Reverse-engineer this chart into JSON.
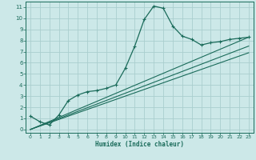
{
  "xlabel": "Humidex (Indice chaleur)",
  "ylabel": "",
  "background_color": "#cce8e8",
  "grid_color": "#aacece",
  "line_color": "#1a6b5a",
  "xlim": [
    -0.5,
    23.5
  ],
  "ylim": [
    -0.3,
    11.5
  ],
  "xticks": [
    0,
    1,
    2,
    3,
    4,
    5,
    6,
    7,
    8,
    9,
    10,
    11,
    12,
    13,
    14,
    15,
    16,
    17,
    18,
    19,
    20,
    21,
    22,
    23
  ],
  "yticks": [
    0,
    1,
    2,
    3,
    4,
    5,
    6,
    7,
    8,
    9,
    10,
    11
  ],
  "main_x": [
    0,
    1,
    2,
    3,
    4,
    5,
    6,
    7,
    8,
    9,
    10,
    11,
    12,
    13,
    14,
    15,
    16,
    17,
    18,
    19,
    20,
    21,
    22,
    23
  ],
  "main_y": [
    1.2,
    0.7,
    0.4,
    1.3,
    2.6,
    3.1,
    3.4,
    3.5,
    3.7,
    4.0,
    5.5,
    7.5,
    9.9,
    11.1,
    10.9,
    9.3,
    8.4,
    8.1,
    7.6,
    7.8,
    7.9,
    8.1,
    8.2,
    8.3
  ],
  "line1_x": [
    0,
    23
  ],
  "line1_y": [
    0,
    8.3
  ],
  "line2_x": [
    0,
    23
  ],
  "line2_y": [
    0,
    7.5
  ],
  "line3_x": [
    0,
    23
  ],
  "line3_y": [
    0,
    6.9
  ]
}
